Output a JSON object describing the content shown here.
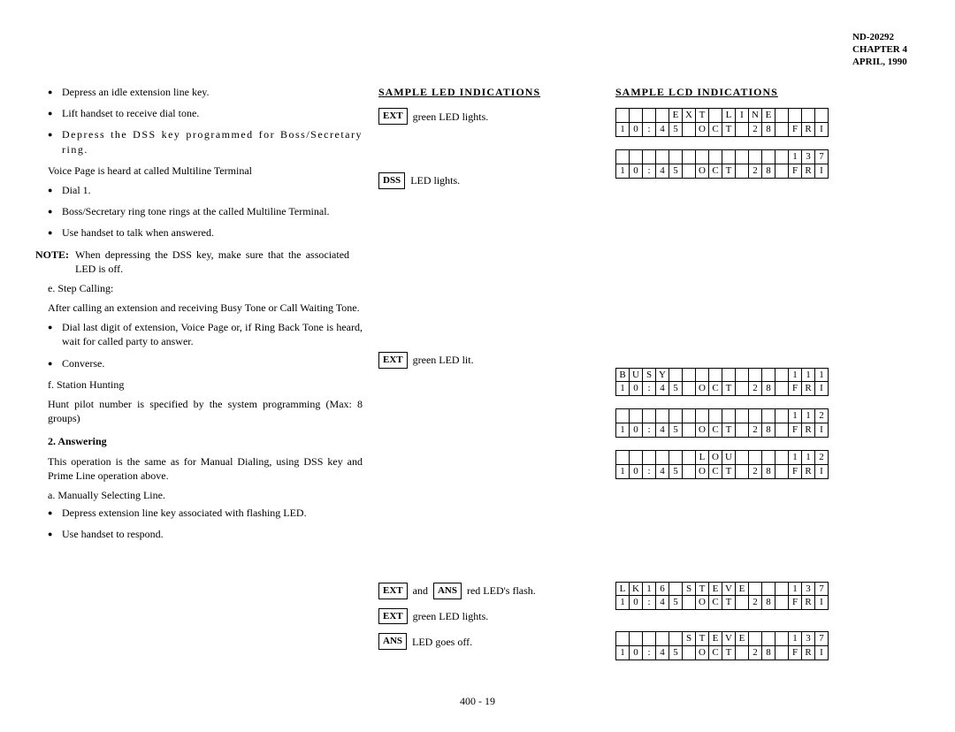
{
  "header": {
    "doc_id": "ND-20292",
    "chapter": "CHAPTER 4",
    "date": "APRIL, 1990"
  },
  "page_number": "400 - 19",
  "left": {
    "bullets1": [
      "Depress an idle extension line key.",
      "Lift handset to receive dial tone.",
      "Depress the DSS key programmed for Boss/Secretary ring."
    ],
    "voice_page": "Voice Page is heard at called Multiline Terminal",
    "bullets2": [
      "Dial 1.",
      "Boss/Secretary ring tone rings at the called Multiline Terminal.",
      "Use handset to talk when answered."
    ],
    "note_label": "NOTE:",
    "note_text": "When depressing the DSS key, make sure that the associated LED is off.",
    "e_label": "e.   Step Calling:",
    "e_text": "After calling an extension and receiving Busy Tone or Call Waiting Tone.",
    "bullets3": [
      "Dial last digit of extension, Voice Page or, if Ring Back Tone is heard, wait for called party to answer.",
      "Converse."
    ],
    "f_label": "f.   Station Hunting",
    "f_text": "Hunt pilot number is specified by the system programming (Max: 8 groups)",
    "answering_h": "2.   Answering",
    "answering_text": "This operation is the same as for Manual Dialing, using DSS key and Prime Line operation above.",
    "a_label": "a.   Manually Selecting Line.",
    "bullets4": [
      "Depress extension line key associated with flashing LED.",
      "Use handset to respond."
    ]
  },
  "led": {
    "title": "SAMPLE LED INDICATIONS",
    "r1_box": "EXT",
    "r1_text": "green LED lights.",
    "r2_box": "DSS",
    "r2_text": "LED lights.",
    "r3_box": "EXT",
    "r3_text": "green LED lit.",
    "r4_box1": "EXT",
    "r4_and": "and",
    "r4_box2": "ANS",
    "r4_text": "red LED's flash.",
    "r5_box": "EXT",
    "r5_text": "green LED lights.",
    "r6_box": "ANS",
    "r6_text": "LED goes off."
  },
  "lcd": {
    "title": "SAMPLE LCD INDICATIONS",
    "d1": {
      "row1": [
        "",
        "",
        "",
        "",
        "E",
        "X",
        "T",
        "",
        "L",
        "I",
        "N",
        "E",
        "",
        "",
        "",
        ""
      ],
      "row2": [
        "1",
        "0",
        ":",
        "4",
        "5",
        "",
        "O",
        "C",
        "T",
        "",
        "2",
        "8",
        "",
        "F",
        "R",
        "I"
      ]
    },
    "d2": {
      "row1": [
        "",
        "",
        "",
        "",
        "",
        "",
        "",
        "",
        "",
        "",
        "",
        "",
        "",
        "1",
        "3",
        "7"
      ],
      "row2": [
        "1",
        "0",
        ":",
        "4",
        "5",
        "",
        "O",
        "C",
        "T",
        "",
        "2",
        "8",
        "",
        "F",
        "R",
        "I"
      ]
    },
    "d3": {
      "row1": [
        "B",
        "U",
        "S",
        "Y",
        "",
        "",
        "",
        "",
        "",
        "",
        "",
        "",
        "",
        "1",
        "1",
        "1"
      ],
      "row2": [
        "1",
        "0",
        ":",
        "4",
        "5",
        "",
        "O",
        "C",
        "T",
        "",
        "2",
        "8",
        "",
        "F",
        "R",
        "I"
      ]
    },
    "d4": {
      "row1": [
        "",
        "",
        "",
        "",
        "",
        "",
        "",
        "",
        "",
        "",
        "",
        "",
        "",
        "1",
        "1",
        "2"
      ],
      "row2": [
        "1",
        "0",
        ":",
        "4",
        "5",
        "",
        "O",
        "C",
        "T",
        "",
        "2",
        "8",
        "",
        "F",
        "R",
        "I"
      ]
    },
    "d5": {
      "row1": [
        "",
        "",
        "",
        "",
        "",
        "",
        "L",
        "O",
        "U",
        "",
        "",
        "",
        "",
        "1",
        "1",
        "2"
      ],
      "row2": [
        "1",
        "0",
        ":",
        "4",
        "5",
        "",
        "O",
        "C",
        "T",
        "",
        "2",
        "8",
        "",
        "F",
        "R",
        "I"
      ]
    },
    "d6": {
      "row1": [
        "L",
        "K",
        "1",
        "6",
        "",
        "S",
        "T",
        "E",
        "V",
        "E",
        "",
        "",
        "",
        "1",
        "3",
        "7"
      ],
      "row2": [
        "1",
        "0",
        ":",
        "4",
        "5",
        "",
        "O",
        "C",
        "T",
        "",
        "2",
        "8",
        "",
        "F",
        "R",
        "I"
      ]
    },
    "d7": {
      "row1": [
        "",
        "",
        "",
        "",
        "",
        "S",
        "T",
        "E",
        "V",
        "E",
        "",
        "",
        "",
        "1",
        "3",
        "7"
      ],
      "row2": [
        "1",
        "0",
        ":",
        "4",
        "5",
        "",
        "O",
        "C",
        "T",
        "",
        "2",
        "8",
        "",
        "F",
        "R",
        "I"
      ]
    }
  }
}
